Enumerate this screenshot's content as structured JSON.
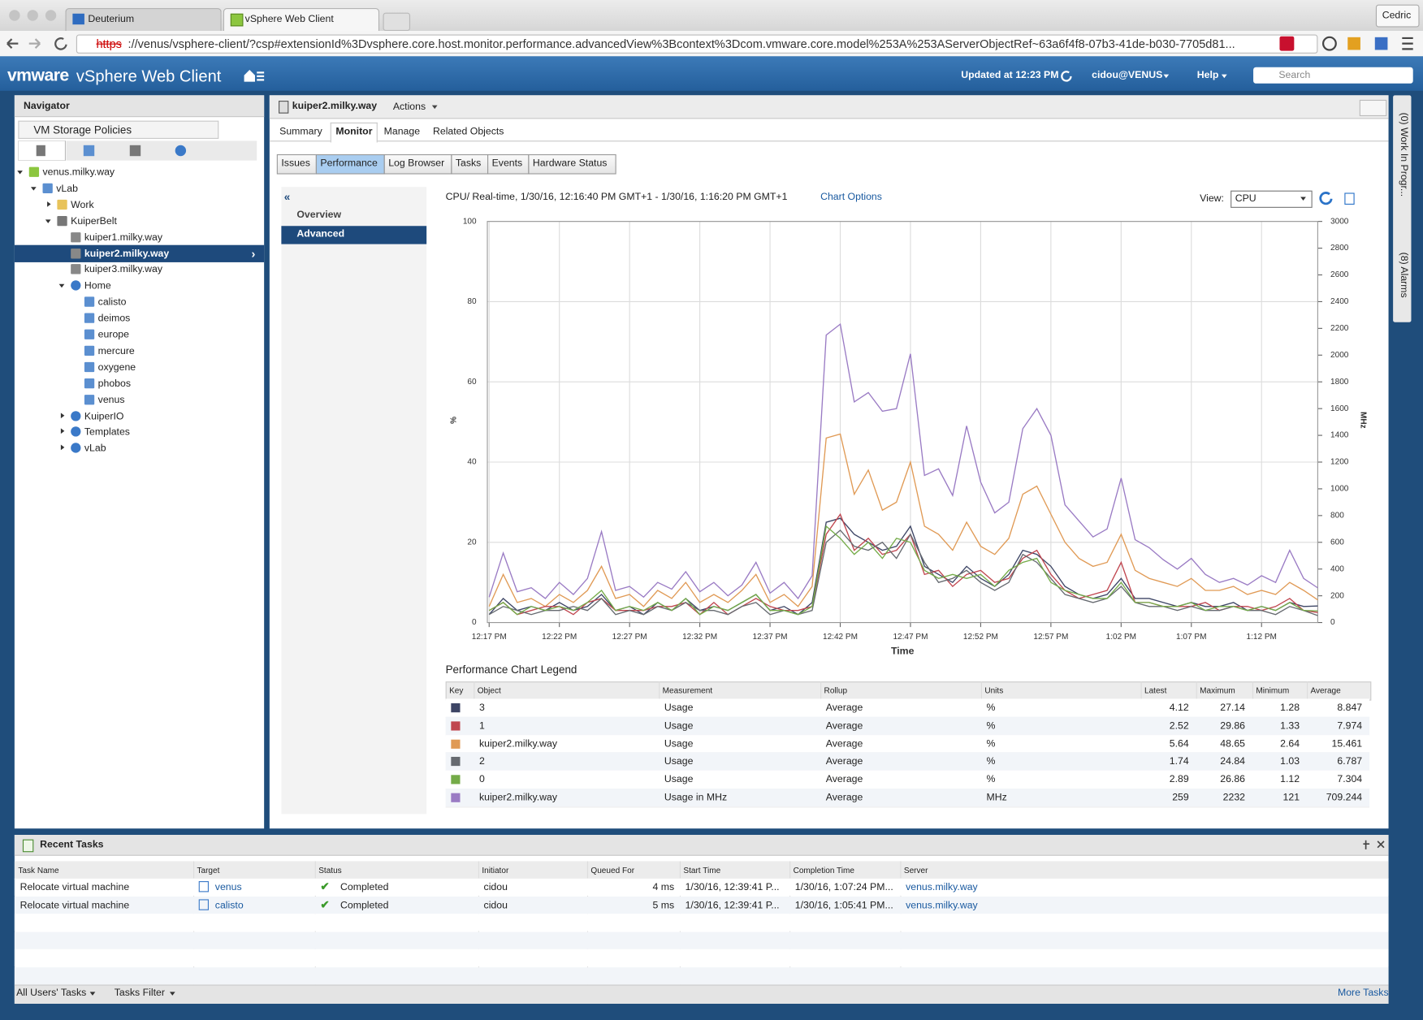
{
  "browser": {
    "tabs": [
      "Deuterium",
      "vSphere Web Client"
    ],
    "user": "Cedric",
    "url_scheme": "https",
    "url_rest": "://venus/vsphere-client/?csp#extensionId%3Dvsphere.core.host.monitor.performance.advancedView%3Bcontext%3Dcom.vmware.core.model%253A%253AServerObjectRef~63a6f4f8-07b3-41de-b030-7705d81..."
  },
  "header": {
    "logo": "vmware",
    "product": "vSphere Web Client",
    "updated": "Updated at 12:23 PM",
    "user": "cidou@VENUS",
    "help": "Help",
    "search": "Search"
  },
  "navigator": {
    "title": "Navigator",
    "breadcrumb": "VM Storage Policies",
    "tree": [
      "venus.milky.way",
      "vLab",
      "Work",
      "KuiperBelt",
      "kuiper1.milky.way",
      "kuiper2.milky.way",
      "kuiper3.milky.way",
      "Home",
      "calisto",
      "deimos",
      "europe",
      "mercure",
      "oxygene",
      "phobos",
      "venus",
      "KuiperIO",
      "Templates",
      "vLab"
    ],
    "selected": 5
  },
  "object": {
    "name": "kuiper2.milky.way",
    "actions": "Actions",
    "tabs": [
      "Summary",
      "Monitor",
      "Manage",
      "Related Objects"
    ],
    "active_tab": 1,
    "subtabs": [
      "Issues",
      "Performance",
      "Log Browser",
      "Tasks",
      "Events",
      "Hardware Status"
    ],
    "active_subtab": 1,
    "views": [
      "Overview",
      "Advanced"
    ],
    "active_view": 1
  },
  "sidebar": {
    "work": "(0)   Work In Progr...",
    "alarms": "(8)   Alarms"
  },
  "chart": {
    "type": "line",
    "title": "CPU/ Real-time, 1/30/16, 12:16:40 PM GMT+1 - 1/30/16, 1:16:20 PM GMT+1",
    "options": "Chart Options",
    "view_label": "View:",
    "view": "CPU",
    "ylabel": "%",
    "y2label": "MHz",
    "xlabel": "Time",
    "categories": [
      "12:17 PM",
      null,
      null,
      null,
      null,
      "12:22 PM",
      null,
      null,
      null,
      null,
      "12:27 PM",
      null,
      null,
      null,
      null,
      "12:32 PM",
      null,
      null,
      null,
      null,
      "12:37 PM",
      null,
      null,
      null,
      null,
      "12:42 PM",
      null,
      null,
      null,
      null,
      "12:47 PM",
      null,
      null,
      null,
      null,
      "12:52 PM",
      null,
      null,
      null,
      null,
      "12:57 PM",
      null,
      null,
      null,
      null,
      "1:02 PM",
      null,
      null,
      null,
      null,
      "1:07 PM",
      null,
      null,
      null,
      null,
      "1:12 PM",
      null,
      null,
      null,
      null
    ],
    "ylim": [
      0,
      100
    ],
    "yticks": [
      0,
      20,
      40,
      60,
      80,
      100
    ],
    "y2lim": [
      0,
      3000
    ],
    "y2ticks": [
      0,
      200,
      400,
      600,
      800,
      1000,
      1200,
      1400,
      1600,
      1800,
      2000,
      2200,
      2400,
      2600,
      2800,
      3000
    ],
    "grid": true,
    "series": [
      {
        "color": "#9a7bc4",
        "axis": "y2",
        "values": [
          190,
          520,
          230,
          260,
          180,
          300,
          210,
          330,
          680,
          240,
          270,
          190,
          300,
          250,
          380,
          230,
          300,
          200,
          280,
          450,
          220,
          300,
          180,
          350,
          2150,
          2232,
          1650,
          1720,
          1580,
          1600,
          2010,
          1100,
          1150,
          950,
          1470,
          1050,
          820,
          900,
          1450,
          1600,
          1400,
          880,
          760,
          640,
          700,
          1080,
          620,
          560,
          470,
          400,
          480,
          360,
          300,
          330,
          280,
          350,
          300,
          540,
          330,
          259
        ]
      },
      {
        "color": "#e09a55",
        "values": [
          4,
          12,
          5,
          6,
          4,
          7,
          5,
          8,
          14,
          6,
          7,
          4,
          8,
          6,
          10,
          5,
          7,
          5,
          8,
          12,
          5,
          7,
          4,
          9,
          46,
          47,
          32,
          38,
          28,
          30,
          40,
          24,
          22,
          18,
          25,
          19,
          17,
          21,
          32,
          34,
          27,
          20,
          16,
          14,
          15,
          22,
          13,
          11,
          10,
          9,
          11,
          8,
          8,
          9,
          7,
          8,
          7,
          10,
          8,
          5.64
        ]
      },
      {
        "color": "#3d4565",
        "values": [
          2,
          6,
          3,
          4,
          3,
          5,
          3,
          4,
          7,
          3,
          4,
          2,
          5,
          3,
          6,
          3,
          4,
          3,
          5,
          7,
          3,
          4,
          2,
          5,
          25,
          26,
          22,
          20,
          18,
          19,
          24,
          14,
          12,
          10,
          14,
          11,
          9,
          12,
          18,
          17,
          14,
          9,
          7,
          6,
          7,
          11,
          6,
          6,
          5,
          4,
          5,
          4,
          4,
          5,
          3,
          4,
          3,
          5,
          4,
          4.12
        ]
      },
      {
        "color": "#c0464f",
        "values": [
          3,
          5,
          2,
          3,
          4,
          4,
          2,
          5,
          6,
          3,
          3,
          3,
          4,
          4,
          5,
          2,
          5,
          2,
          4,
          6,
          4,
          3,
          3,
          4,
          22,
          27,
          18,
          21,
          17,
          18,
          22,
          12,
          13,
          9,
          12,
          13,
          10,
          11,
          16,
          18,
          12,
          8,
          6,
          7,
          8,
          15,
          5,
          5,
          4,
          4,
          4,
          5,
          3,
          4,
          4,
          3,
          4,
          6,
          3,
          2.52
        ]
      },
      {
        "color": "#666a70",
        "values": [
          2,
          4,
          3,
          2,
          3,
          3,
          4,
          3,
          6,
          2,
          3,
          2,
          4,
          3,
          5,
          3,
          3,
          2,
          4,
          5,
          2,
          3,
          2,
          3,
          20,
          23,
          19,
          18,
          20,
          16,
          22,
          15,
          10,
          11,
          13,
          10,
          8,
          10,
          17,
          15,
          11,
          7,
          6,
          5,
          6,
          9,
          5,
          4,
          4,
          3,
          4,
          3,
          3,
          4,
          3,
          3,
          2,
          4,
          3,
          1.74
        ]
      },
      {
        "color": "#74ab48",
        "values": [
          3,
          5,
          2,
          4,
          3,
          4,
          3,
          5,
          8,
          3,
          4,
          3,
          5,
          3,
          6,
          2,
          4,
          3,
          5,
          7,
          3,
          3,
          2,
          4,
          24,
          21,
          17,
          20,
          16,
          21,
          20,
          13,
          11,
          12,
          11,
          12,
          9,
          13,
          15,
          16,
          10,
          8,
          7,
          6,
          6,
          10,
          5,
          5,
          4,
          4,
          5,
          3,
          4,
          4,
          3,
          4,
          3,
          5,
          3,
          2.89
        ]
      }
    ]
  },
  "legend": {
    "title": "Performance Chart Legend",
    "columns": [
      "Key",
      "Object",
      "Measurement",
      "Rollup",
      "Units",
      "Latest",
      "Maximum",
      "Minimum",
      "Average"
    ],
    "rows": [
      {
        "series": 2,
        "cells": [
          "3",
          "Usage",
          "Average",
          "%",
          4.12,
          27.14,
          1.28,
          8.847
        ]
      },
      {
        "series": 3,
        "cells": [
          "1",
          "Usage",
          "Average",
          "%",
          2.52,
          29.86,
          1.33,
          7.974
        ]
      },
      {
        "series": 1,
        "cells": [
          "kuiper2.milky.way",
          "Usage",
          "Average",
          "%",
          5.64,
          48.65,
          2.64,
          15.461
        ]
      },
      {
        "series": 4,
        "cells": [
          "2",
          "Usage",
          "Average",
          "%",
          1.74,
          24.84,
          1.03,
          6.787
        ]
      },
      {
        "series": 5,
        "cells": [
          "0",
          "Usage",
          "Average",
          "%",
          2.89,
          26.86,
          1.12,
          7.304
        ]
      },
      {
        "series": 0,
        "cells": [
          "kuiper2.milky.way",
          "Usage in MHz",
          "Average",
          "MHz",
          259,
          2232,
          121,
          709.244
        ]
      }
    ]
  },
  "tasks": {
    "title": "Recent Tasks",
    "columns": [
      "Task Name",
      "Target",
      "Status",
      "Initiator",
      "Queued For",
      "Start Time",
      "Completion Time",
      "Server"
    ],
    "rows": [
      [
        "Relocate virtual machine",
        "venus",
        "Completed",
        "cidou",
        "4 ms",
        "1/30/16, 12:39:41 P...",
        "1/30/16, 1:07:24 PM...",
        "venus.milky.way"
      ],
      [
        "Relocate virtual machine",
        "calisto",
        "Completed",
        "cidou",
        "5 ms",
        "1/30/16, 12:39:41 P...",
        "1/30/16, 1:05:41 PM...",
        "venus.milky.way"
      ]
    ],
    "filter_users": "All Users' Tasks",
    "filter": "Tasks Filter",
    "more": "More Tasks"
  }
}
